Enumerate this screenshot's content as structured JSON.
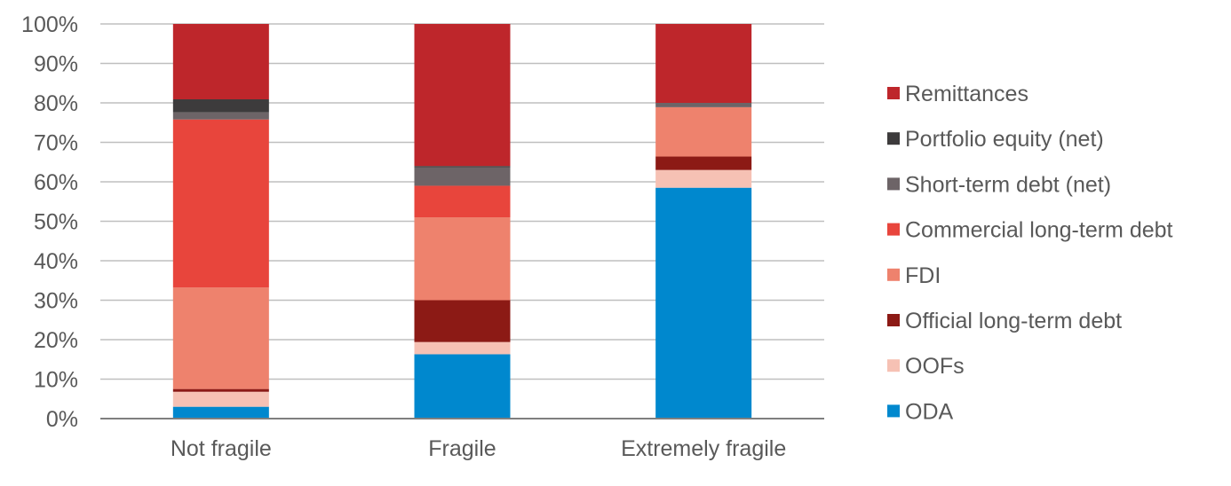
{
  "chart_data": {
    "type": "bar",
    "stacked": true,
    "title": "",
    "xlabel": "",
    "ylabel": "",
    "ylim": [
      0,
      100
    ],
    "y_ticks": [
      "0%",
      "10%",
      "20%",
      "30%",
      "40%",
      "50%",
      "60%",
      "70%",
      "80%",
      "90%",
      "100%"
    ],
    "grid": true,
    "legend_position": "right",
    "categories": [
      "Not fragile",
      "Fragile",
      "Extremely fragile"
    ],
    "series": [
      {
        "name": "ODA",
        "color": "#0088CE",
        "values": [
          3,
          16.3,
          58.5
        ]
      },
      {
        "name": "OOFs",
        "color": "#F6C1B4",
        "values": [
          3.8,
          3.1,
          4.5
        ]
      },
      {
        "name": "Official long-term debt",
        "color": "#8C1A15",
        "values": [
          0.7,
          10.6,
          3.4
        ]
      },
      {
        "name": "FDI",
        "color": "#EE826D",
        "values": [
          25.7,
          21,
          12.5
        ]
      },
      {
        "name": "Commercial long-term debt",
        "color": "#E8453C",
        "values": [
          42.6,
          8,
          0
        ]
      },
      {
        "name": "Short-term debt (net)",
        "color": "#6D6467",
        "values": [
          1.8,
          4.7,
          1.1
        ]
      },
      {
        "name": "Portfolio equity (net)",
        "color": "#3D3B3C",
        "values": [
          3.3,
          0.3,
          0
        ]
      },
      {
        "name": "Remittances",
        "color": "#BE262B",
        "values": [
          19.1,
          36,
          20
        ]
      }
    ]
  }
}
